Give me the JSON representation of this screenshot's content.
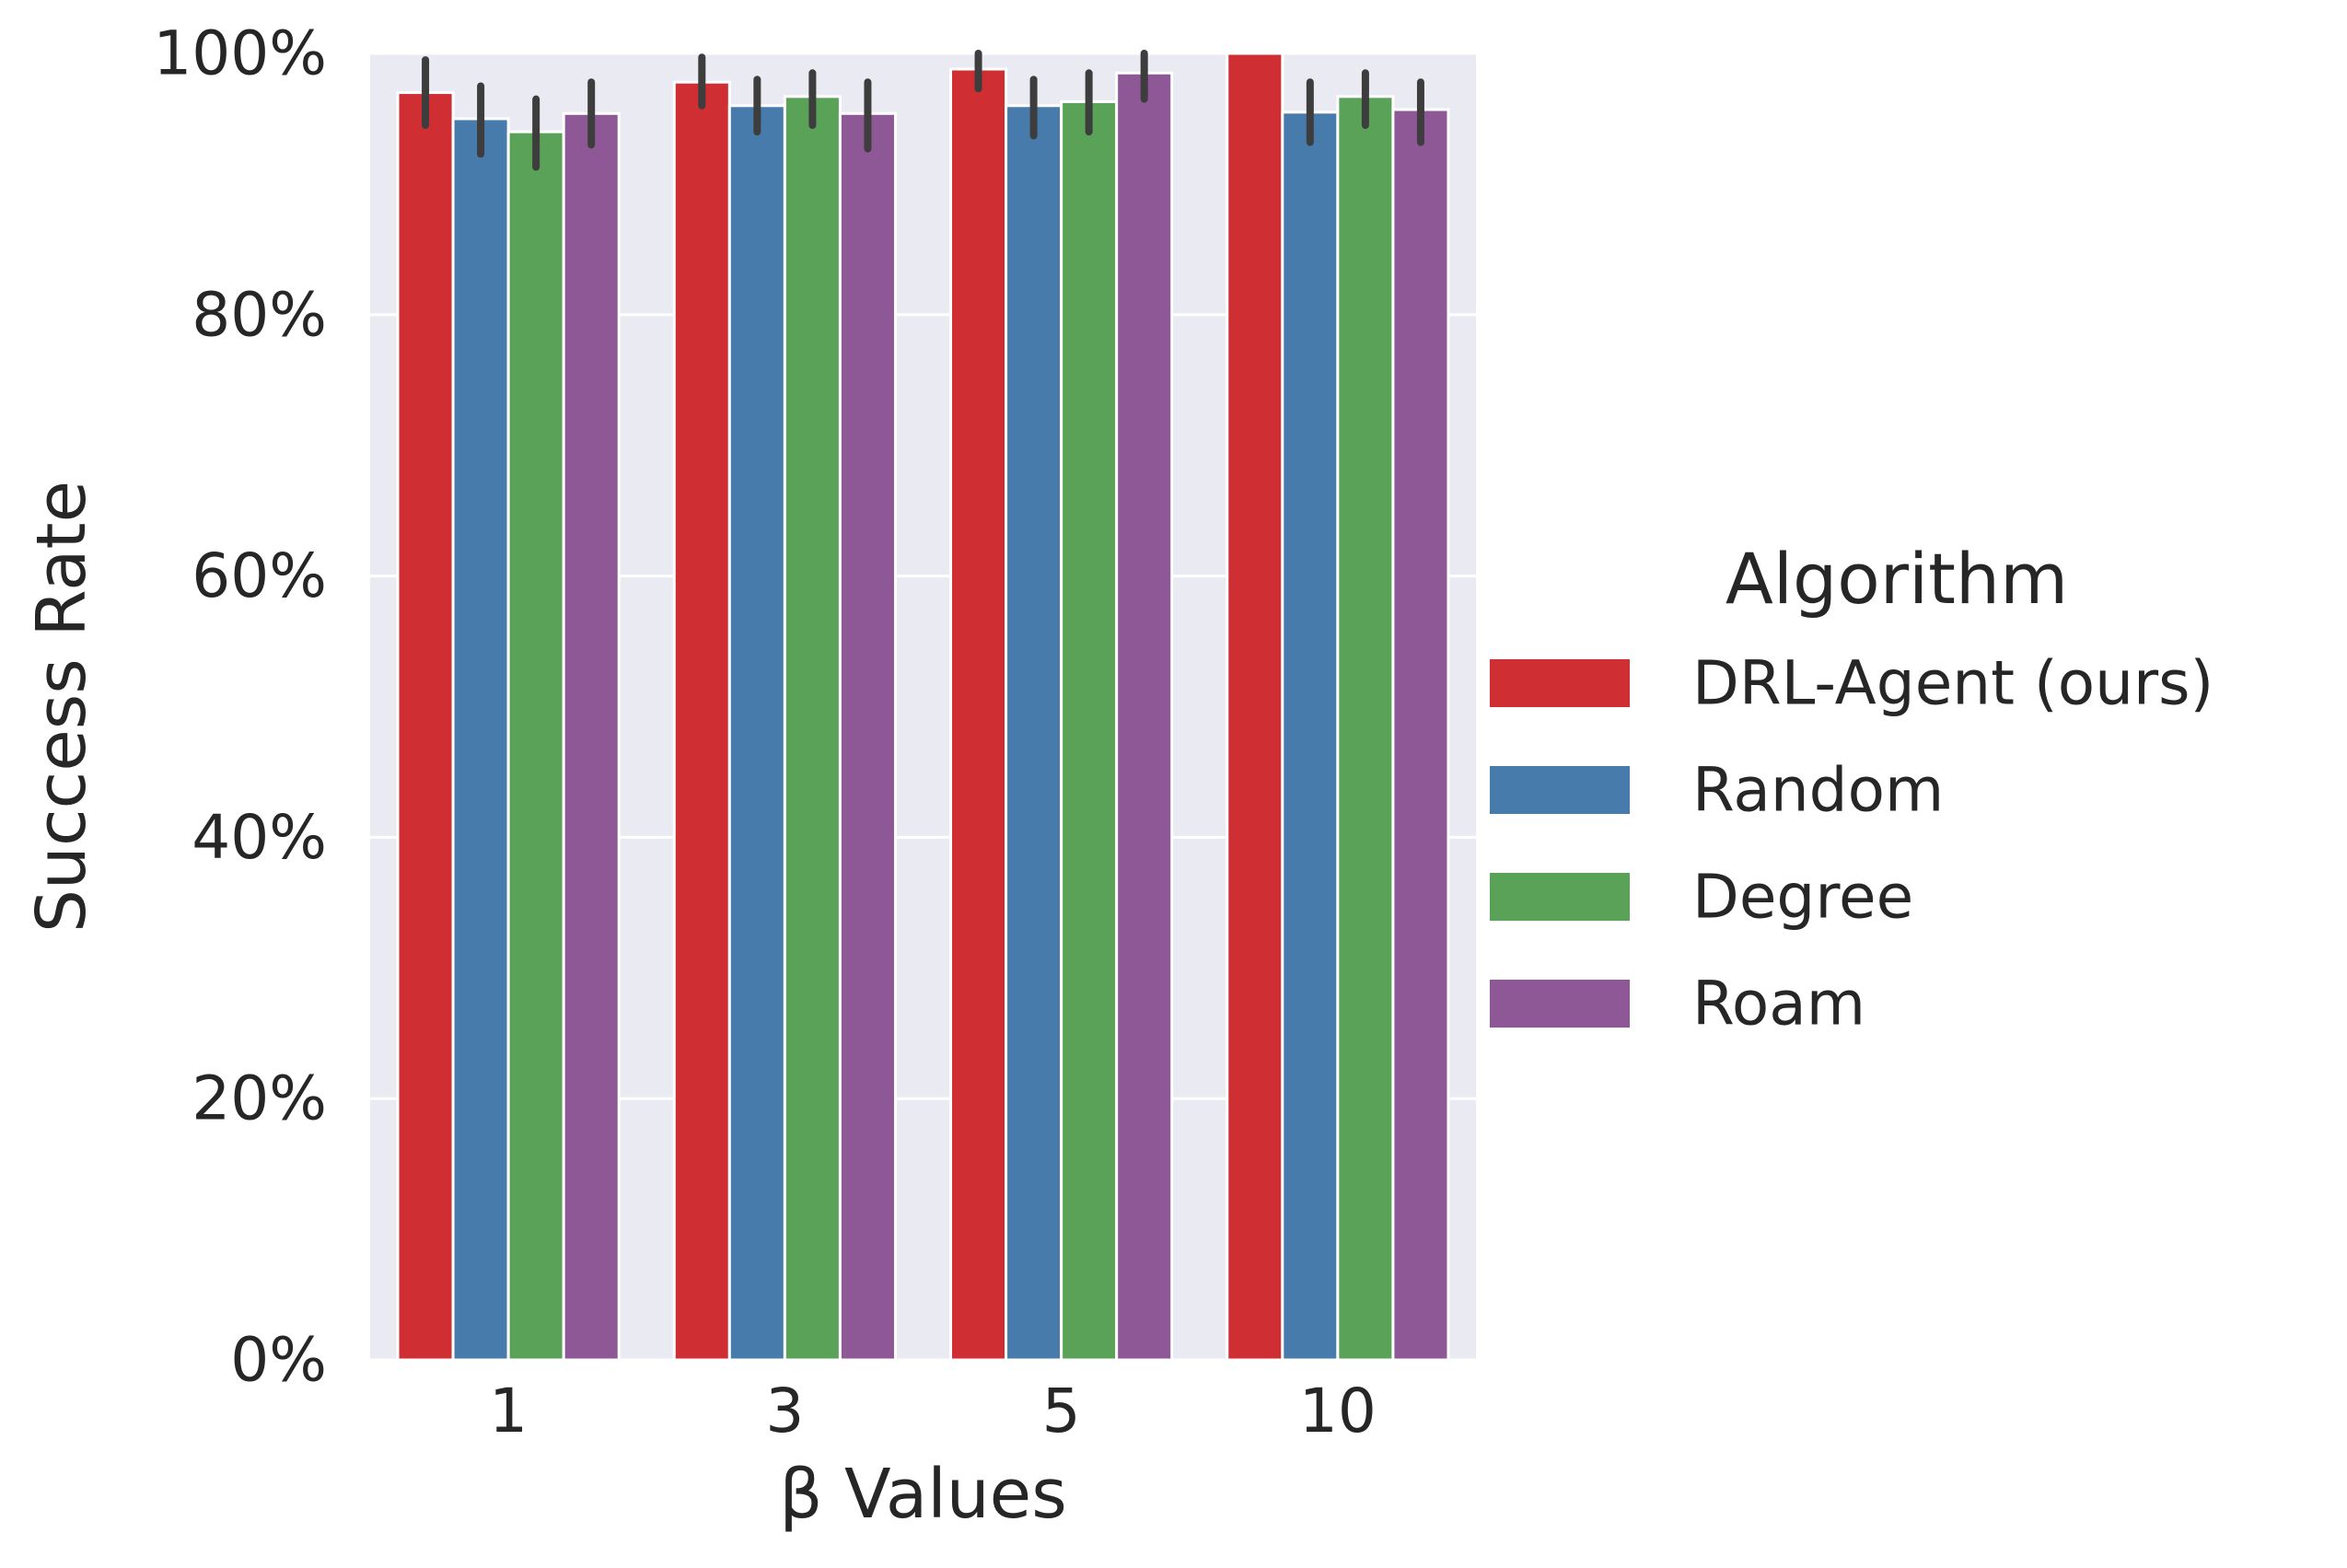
{
  "chart_data": {
    "type": "bar",
    "title": "",
    "xlabel": "β Values",
    "ylabel": "Success Rate",
    "categories": [
      "1",
      "3",
      "5",
      "10"
    ],
    "ylim": [
      0,
      1
    ],
    "yticks": [
      0,
      0.2,
      0.4,
      0.6,
      0.8,
      1.0
    ],
    "ytick_labels": [
      "0%",
      "20%",
      "40%",
      "60%",
      "80%",
      "100%"
    ],
    "grid": true,
    "legend": {
      "title": "Algorithm",
      "placement": "right"
    },
    "series": [
      {
        "name": "DRL-Agent (ours)",
        "color": "#cf2e33",
        "values": [
          0.97,
          0.978,
          0.988,
          1.0
        ],
        "err_low": [
          0.945,
          0.96,
          0.973,
          1.0
        ],
        "err_high": [
          0.995,
          0.997,
          1.0,
          1.0
        ]
      },
      {
        "name": "Random",
        "color": "#467bab",
        "values": [
          0.95,
          0.96,
          0.96,
          0.955
        ],
        "err_low": [
          0.923,
          0.94,
          0.937,
          0.932
        ],
        "err_high": [
          0.975,
          0.98,
          0.98,
          0.978
        ]
      },
      {
        "name": "Degree",
        "color": "#5ba259",
        "values": [
          0.94,
          0.967,
          0.963,
          0.967
        ],
        "err_low": [
          0.913,
          0.945,
          0.94,
          0.945
        ],
        "err_high": [
          0.965,
          0.985,
          0.985,
          0.985
        ]
      },
      {
        "name": "Roam",
        "color": "#8e5896",
        "values": [
          0.954,
          0.954,
          0.985,
          0.957
        ],
        "err_low": [
          0.93,
          0.927,
          0.965,
          0.932
        ],
        "err_high": [
          0.978,
          0.978,
          1.0,
          0.978
        ]
      }
    ]
  }
}
